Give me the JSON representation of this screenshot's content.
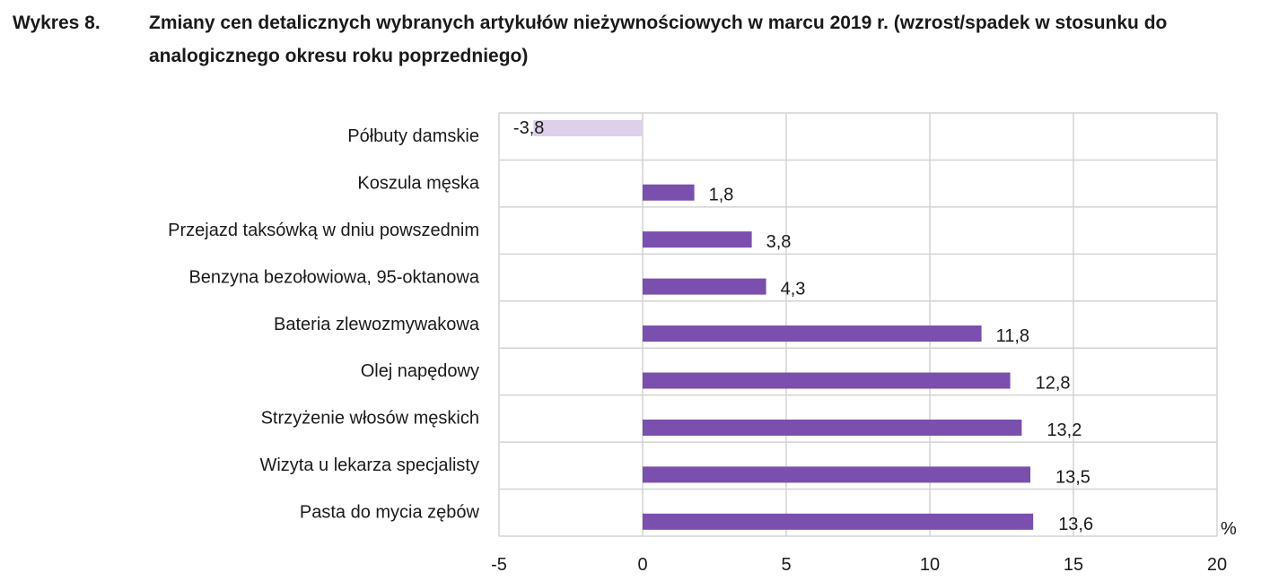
{
  "figure": {
    "label": "Wykres 8.",
    "title": "Zmiany cen detalicznych wybranych artykułów nieżywnościowych w marcu 2019 r. (wzrost/spadek w stosunku do analogicznego okresu roku poprzedniego)"
  },
  "chart_data": {
    "type": "bar",
    "orientation": "horizontal",
    "categories": [
      "Półbuty damskie",
      "Koszula męska",
      "Przejazd taksówką w dniu powszednim",
      "Benzyna bezołowiowa, 95-oktanowa",
      "Bateria zlewozmywakowa",
      "Olej napędowy",
      "Strzyżenie włosów męskich",
      "Wizyta u lekarza specjalisty",
      "Pasta do mycia zębów"
    ],
    "values": [
      -3.8,
      1.8,
      3.8,
      4.3,
      11.8,
      12.8,
      13.2,
      13.5,
      13.6
    ],
    "value_labels": [
      "-3,8",
      "1,8",
      "3,8",
      "4,3",
      "11,8",
      "12,8",
      "13,2",
      "13,5",
      "13,6"
    ],
    "xlim": [
      -5,
      20
    ],
    "xticks": [
      -5,
      0,
      5,
      10,
      15,
      20
    ],
    "xtick_labels": [
      "-5",
      "0",
      "5",
      "10",
      "15",
      "20"
    ],
    "unit": "%",
    "grid": true,
    "colors": {
      "positive": "#7a4fae",
      "negative": "#ddd0ea",
      "grid": "#d3d3d3"
    }
  }
}
